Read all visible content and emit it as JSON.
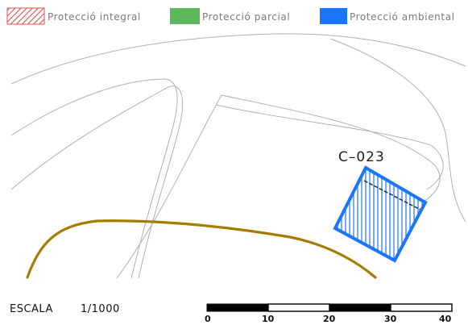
{
  "legend": {
    "items": [
      {
        "label": "Protecció integral",
        "pattern": "hatch",
        "color": "#e05050"
      },
      {
        "label": "Protecció parcial",
        "pattern": "solid",
        "color": "#5cb85c"
      },
      {
        "label": "Protecció ambiental",
        "pattern": "solid",
        "color": "#1a75ff"
      }
    ]
  },
  "parcel": {
    "label": "C–023",
    "protection": "Protecció ambiental",
    "color": "#1a75ff"
  },
  "colors": {
    "road_line": "#b0b0b0",
    "river": "#a67c00"
  },
  "scale": {
    "text": "ESCALA",
    "ratio": "1/1000",
    "ticks": [
      "0",
      "10",
      "20",
      "30",
      "40"
    ]
  }
}
